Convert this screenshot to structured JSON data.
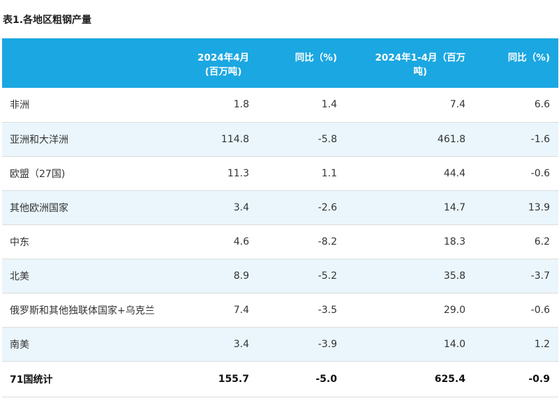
{
  "caption": "表1.各地区粗钢产量",
  "headers": {
    "region": "",
    "april_line1": "2024年4月",
    "april_line2": "(百万吨)",
    "april_yoy": "同比（%)",
    "ytd_line1": "2024年1-4月（百万",
    "ytd_line2": "吨)",
    "ytd_yoy": "同比（%)"
  },
  "rows": [
    {
      "region": "非洲",
      "april": "1.8",
      "april_yoy": "1.4",
      "ytd": "7.4",
      "ytd_yoy": "6.6"
    },
    {
      "region": "亚洲和大洋洲",
      "april": "114.8",
      "april_yoy": "-5.8",
      "ytd": "461.8",
      "ytd_yoy": "-1.6"
    },
    {
      "region": "欧盟（27国)",
      "april": "11.3",
      "april_yoy": "1.1",
      "ytd": "44.4",
      "ytd_yoy": "-0.6"
    },
    {
      "region": "其他欧洲国家",
      "april": "3.4",
      "april_yoy": "-2.6",
      "ytd": "14.7",
      "ytd_yoy": "13.9"
    },
    {
      "region": "中东",
      "april": "4.6",
      "april_yoy": "-8.2",
      "ytd": "18.3",
      "ytd_yoy": "6.2"
    },
    {
      "region": "北美",
      "april": "8.9",
      "april_yoy": "-5.2",
      "ytd": "35.8",
      "ytd_yoy": "-3.7"
    },
    {
      "region": "俄罗斯和其他独联体国家+乌克兰",
      "april": "7.4",
      "april_yoy": "-3.5",
      "ytd": "29.0",
      "ytd_yoy": "-0.6"
    },
    {
      "region": "南美",
      "april": "3.4",
      "april_yoy": "-3.9",
      "ytd": "14.0",
      "ytd_yoy": "1.2"
    }
  ],
  "total": {
    "region": "71国统计",
    "april": "155.7",
    "april_yoy": "-5.0",
    "ytd": "625.4",
    "ytd_yoy": "-0.9"
  },
  "colors": {
    "header_bg": "#1ba7e1",
    "shade_bg": "#eaf6fc",
    "header_text": "#ffffff"
  }
}
